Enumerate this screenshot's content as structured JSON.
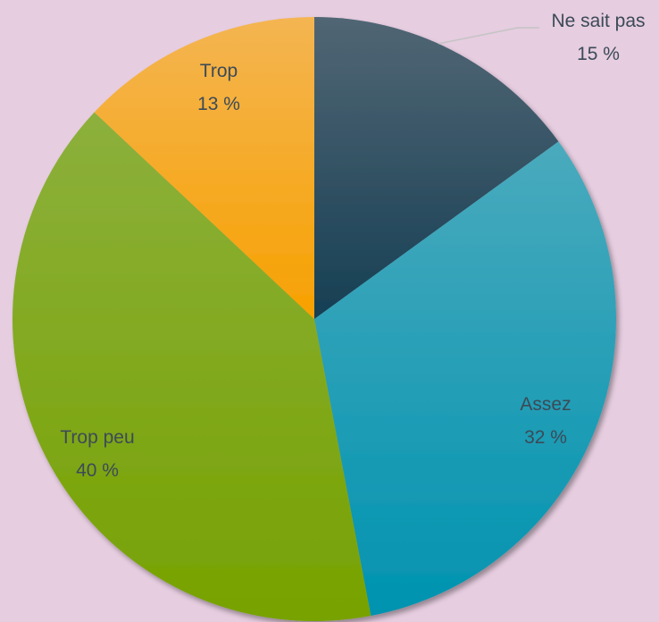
{
  "chart_data": {
    "type": "pie",
    "start_angle_deg": 0,
    "direction": "clockwise",
    "slices": [
      {
        "label": "Ne sait pas",
        "value": 15,
        "value_text": "15 %",
        "color_top": "#516674",
        "color_bottom": "#163f54"
      },
      {
        "label": "Assez",
        "value": 32,
        "value_text": "32 %",
        "color_top": "#4aaabd",
        "color_bottom": "#0093b0"
      },
      {
        "label": "Trop peu",
        "value": 40,
        "value_text": "40 %",
        "color_top": "#8cb03c",
        "color_bottom": "#77a200"
      },
      {
        "label": "Trop",
        "value": 13,
        "value_text": "13 %",
        "color_top": "#f4b552",
        "color_bottom": "#f7a100"
      }
    ],
    "label_color": "#3c4a57",
    "leader_line_color": "#c4c4c4",
    "background": "#e6cde0"
  }
}
